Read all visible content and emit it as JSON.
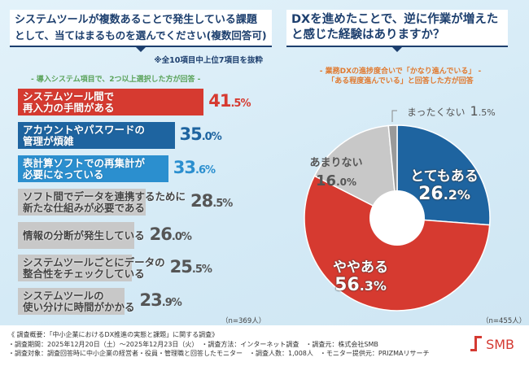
{
  "left": {
    "title_line1": "システムツールが複数あることで発生している課題",
    "title_line2": "として、当てはまるものを選んでください(複数回答可)",
    "note": "※全10項目中上位7項目を抜粋",
    "subtitle": "- 導入システム項目で、2つ以上選択した方が回答 -",
    "n_label": "（n=369人）"
  },
  "right": {
    "title_line1": "DXを進めたことで、逆に作業が増えた",
    "title_line2": "と感じた経験はありますか？",
    "subtitle_line1": "-  業務DXの進捗度合いで「かなり進んでいる」  -",
    "subtitle_line2": "「ある程度進んでいる」と回答した方が回答",
    "n_label": "（n=455人）"
  },
  "chart_data": [
    {
      "type": "bar",
      "orientation": "horizontal",
      "unit": "%",
      "categories": [
        "システムツール間で\n再入力の手間がある",
        "アカウントやパスワードの\n管理が煩雑",
        "表計算ソフトでの再集計が\n必要になっている",
        "ソフト間でデータを連携するために\n新たな仕組みが必要である",
        "情報の分断が発生している",
        "システムツールごとにデータの\n整合性をチェックしている",
        "システムツールの\n使い分けに時間がかかる"
      ],
      "values": [
        41.5,
        35.0,
        33.6,
        28.5,
        26.0,
        25.5,
        23.9
      ],
      "colors": [
        "#d63a30",
        "#1e64a0",
        "#2b8fcf",
        "#c8c8c8",
        "#c8c8c8",
        "#c8c8c8",
        "#c8c8c8"
      ],
      "value_colors": [
        "#d63a30",
        "#1e64a0",
        "#2b8fcf",
        "#555555",
        "#555555",
        "#555555",
        "#555555"
      ]
    },
    {
      "type": "pie",
      "donut": true,
      "start": "top",
      "direction": "clockwise",
      "unit": "%",
      "labels": [
        "とてもある",
        "ややある",
        "あまりない",
        "まったくない"
      ],
      "values": [
        26.2,
        56.3,
        16.0,
        1.5
      ],
      "colors": [
        "#1e64a0",
        "#d63a30",
        "#c8c8c8",
        "#9a9a9a"
      ]
    }
  ],
  "footer": {
    "line1": "《 調査概要：「中小企業におけるDX推進の実態と課題」に関する調査》",
    "line2": "・調査期間：2025年12月20日（土）～2025年12月23日（火）　・調査方法：インターネット調査　・調査元：株式会社SMB",
    "line3": "・調査対象：調査回答時に中小企業の経営者・役員・管理職と回答したモニター　・調査人数：1,008人　・モニター提供元：PRIZMAリサーチ",
    "logo_text": "SMB",
    "brand_color": "#d43a32"
  }
}
